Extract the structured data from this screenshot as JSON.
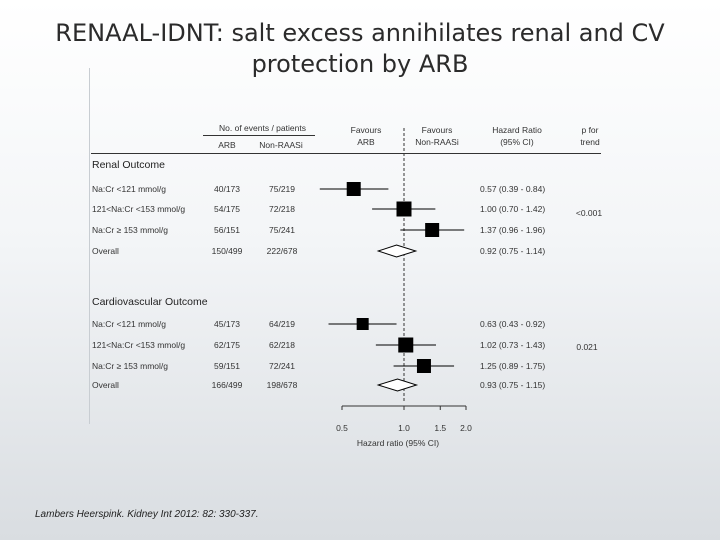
{
  "title": {
    "line1": "RENAAL-IDNT: salt excess annihilates renal and CV",
    "line2": "protection by ARB"
  },
  "header": {
    "events_title": "No. of events / patients",
    "col_arb": "ARB",
    "col_nonraasi": "Non-RAASi",
    "favours_arb": [
      "Favours",
      "ARB"
    ],
    "favours_nonraasi": [
      "Favours",
      "Non-RAASi"
    ],
    "hazard_ratio": [
      "Hazard Ratio",
      "(95% CI)"
    ],
    "p_trend": [
      "p for",
      "trend"
    ]
  },
  "sections": [
    {
      "name": "Renal Outcome",
      "p_trend": "<0.001",
      "rows": [
        {
          "label": "Na:Cr <121 mmol/g",
          "arb": "40/173",
          "nonraasi": "75/219",
          "hr_text": "0.57  (0.39 - 0.84)"
        },
        {
          "label": "121<Na:Cr <153 mmol/g",
          "arb": "54/175",
          "nonraasi": "72/218",
          "hr_text": "1.00  (0.70 - 1.42)"
        },
        {
          "label": "Na:Cr ≥ 153 mmol/g",
          "arb": "56/151",
          "nonraasi": "75/241",
          "hr_text": "1.37  (0.96 - 1.96)"
        },
        {
          "label": "Overall",
          "arb": "150/499",
          "nonraasi": "222/678",
          "hr_text": "0.92  (0.75 - 1.14)"
        }
      ]
    },
    {
      "name": "Cardiovascular  Outcome",
      "p_trend": "0.021",
      "rows": [
        {
          "label": "Na:Cr <121 mmol/g",
          "arb": "45/173",
          "nonraasi": "64/219",
          "hr_text": "0.63  (0.43 - 0.92)"
        },
        {
          "label": "121<Na:Cr <153 mmol/g",
          "arb": "62/175",
          "nonraasi": "62/218",
          "hr_text": "1.02  (0.73 - 1.43)"
        },
        {
          "label": "Na:Cr ≥ 153 mmol/g",
          "arb": "59/151",
          "nonraasi": "72/241",
          "hr_text": "1.25  (0.89 - 1.75)"
        },
        {
          "label": "Overall",
          "arb": "166/499",
          "nonraasi": "198/678",
          "hr_text": "0.93  (0.75 - 1.15)"
        }
      ]
    }
  ],
  "citation": "Lambers Heerspink. Kidney Int 2012: 82: 330-337.",
  "chart_data": {
    "type": "forest",
    "xlabel": "Hazard ratio (95% CI)",
    "x_ticks": [
      "0.5",
      "1.0",
      "1.5",
      "2.0"
    ],
    "x_tick_values": [
      0.5,
      1.0,
      1.5,
      2.0
    ],
    "reference_line": 1.0,
    "series": [
      {
        "name": "Renal Outcome",
        "points": [
          {
            "category": "Na:Cr <121 mmol/g",
            "hr": 0.57,
            "lo": 0.39,
            "hi": 0.84,
            "kind": "square"
          },
          {
            "category": "121<Na:Cr <153 mmol/g",
            "hr": 1.0,
            "lo": 0.7,
            "hi": 1.42,
            "kind": "square"
          },
          {
            "category": "Na:Cr ≥ 153 mmol/g",
            "hr": 1.37,
            "lo": 0.96,
            "hi": 1.96,
            "kind": "square"
          },
          {
            "category": "Overall",
            "hr": 0.92,
            "lo": 0.75,
            "hi": 1.14,
            "kind": "diamond"
          }
        ]
      },
      {
        "name": "Cardiovascular  Outcome",
        "points": [
          {
            "category": "Na:Cr <121 mmol/g",
            "hr": 0.63,
            "lo": 0.43,
            "hi": 0.92,
            "kind": "square"
          },
          {
            "category": "121<Na:Cr <153 mmol/g",
            "hr": 1.02,
            "lo": 0.73,
            "hi": 1.43,
            "kind": "square"
          },
          {
            "category": "Na:Cr ≥ 153 mmol/g",
            "hr": 1.25,
            "lo": 0.89,
            "hi": 1.75,
            "kind": "square"
          },
          {
            "category": "Overall",
            "hr": 0.93,
            "lo": 0.75,
            "hi": 1.15,
            "kind": "diamond"
          }
        ]
      }
    ]
  }
}
